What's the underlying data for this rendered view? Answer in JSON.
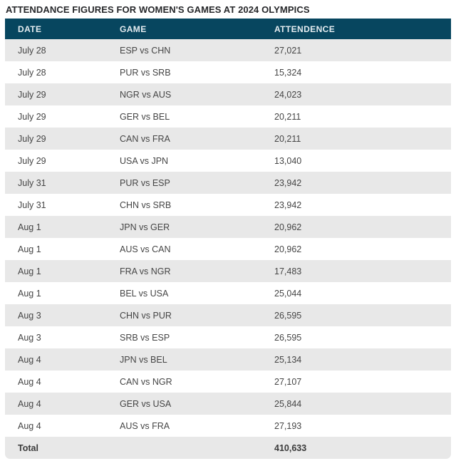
{
  "title": "ATTENDANCE FIGURES FOR WOMEN'S GAMES AT 2024 OLYMPICS",
  "chart_data": {
    "type": "table",
    "title": "ATTENDANCE FIGURES FOR WOMEN'S GAMES AT 2024 OLYMPICS",
    "columns": [
      "DATE",
      "GAME",
      "ATTENDENCE"
    ],
    "rows": [
      [
        "July 28",
        "ESP vs CHN",
        "27,021"
      ],
      [
        "July 28",
        "PUR vs SRB",
        "15,324"
      ],
      [
        "July 29",
        "NGR vs AUS",
        "24,023"
      ],
      [
        "July 29",
        "GER vs BEL",
        "20,211"
      ],
      [
        "July 29",
        "CAN vs FRA",
        "20,211"
      ],
      [
        "July 29",
        "USA vs JPN",
        "13,040"
      ],
      [
        "July 31",
        "PUR vs ESP",
        "23,942"
      ],
      [
        "July 31",
        "CHN vs SRB",
        "23,942"
      ],
      [
        "Aug 1",
        "JPN vs GER",
        "20,962"
      ],
      [
        "Aug 1",
        "AUS vs CAN",
        "20,962"
      ],
      [
        "Aug 1",
        "FRA vs NGR",
        "17,483"
      ],
      [
        "Aug 1",
        "BEL vs USA",
        "25,044"
      ],
      [
        "Aug 3",
        "CHN vs PUR",
        "26,595"
      ],
      [
        "Aug 3",
        "SRB vs ESP",
        "26,595"
      ],
      [
        "Aug 4",
        "JPN vs BEL",
        "25,134"
      ],
      [
        "Aug 4",
        "CAN vs NGR",
        "27,107"
      ],
      [
        "Aug 4",
        "GER vs USA",
        "25,844"
      ],
      [
        "Aug 4",
        "AUS vs FRA",
        "27,193"
      ]
    ],
    "total_row": {
      "label": "Total",
      "game": "",
      "value": "410,633"
    },
    "layout": {
      "row_striping": "alternating, first row shaded",
      "legend": "none",
      "grid": "off"
    }
  },
  "colors": {
    "header_bg": "#07465f",
    "header_text": "#e6edf1",
    "row_alt_bg": "#e8e8e8",
    "row_bg": "#ffffff",
    "body_text": "#454545",
    "title_text": "#26272a"
  }
}
